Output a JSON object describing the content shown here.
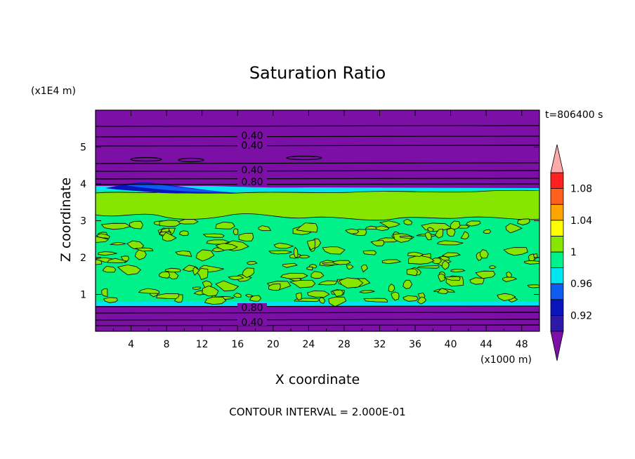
{
  "chart_data": {
    "type": "heatmap",
    "title": "Saturation Ratio",
    "xlabel": "X coordinate",
    "ylabel": "Z coordinate",
    "x_unit": "(x1000 m)",
    "y_unit": "(x1E4 m)",
    "time_label": "t=806400 s",
    "footer": "CONTOUR INTERVAL = 2.000E-01",
    "xlim": [
      0,
      50
    ],
    "ylim": [
      0,
      6
    ],
    "x_ticks": [
      "4",
      "8",
      "12",
      "16",
      "20",
      "24",
      "28",
      "32",
      "36",
      "40",
      "44",
      "48"
    ],
    "y_ticks": [
      "1",
      "2",
      "3",
      "4",
      "5"
    ],
    "contour_labels": [
      "0.40",
      "0.40",
      "0.40",
      "0.80",
      "0.80",
      "0.40"
    ],
    "colorbar": {
      "tick_labels": [
        "1.08",
        "1.04",
        "1",
        "0.96",
        "0.92"
      ],
      "levels": [
        0.9,
        0.92,
        0.94,
        0.96,
        0.98,
        1.0,
        1.02,
        1.04,
        1.06,
        1.08,
        1.1
      ],
      "colors": [
        "#7b0fa6",
        "#2c1aa6",
        "#0a14bd",
        "#0f5cf0",
        "#00e6f0",
        "#00f08a",
        "#86e600",
        "#ffff00",
        "#ffa500",
        "#ff6020",
        "#ff2020",
        "#ffaaaa"
      ]
    },
    "regions": [
      {
        "z_range": [
          0,
          0.75
        ],
        "value_class": "below 0.9",
        "color": "#7b0fa6"
      },
      {
        "z_range": [
          0.75,
          2.9
        ],
        "value_class": "0.98-1.02 mixed",
        "color": "#00f08a"
      },
      {
        "z_range": [
          2.9,
          3.85
        ],
        "value_class": "1.0-1.02 mixed",
        "color": "#86e600"
      },
      {
        "z_range": [
          3.85,
          6
        ],
        "value_class": "below 0.9",
        "color": "#7b0fa6"
      }
    ]
  }
}
